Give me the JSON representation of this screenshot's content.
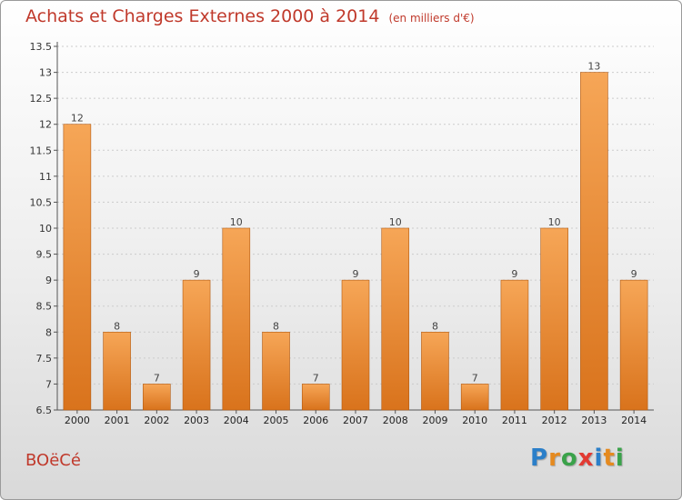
{
  "header": {
    "title": "Achats et Charges Externes 2000 à 2014",
    "unit": "(en milliers d'€)"
  },
  "commune": "BOëCé",
  "logo": {
    "letters": [
      "P",
      "r",
      "o",
      "x",
      "i",
      "t",
      "i"
    ],
    "colors": [
      "#2b7fc9",
      "#e58a1f",
      "#3aa24a",
      "#e23a32",
      "#2b7fc9",
      "#e58a1f",
      "#3aa24a"
    ]
  },
  "colors": {
    "bar_light": "#f6a657",
    "bar_dark": "#d9731c",
    "bar_shadow": "#b25a12",
    "grid": "#cccccc"
  },
  "chart_data": {
    "type": "bar",
    "title": "Achats et Charges Externes 2000 à 2014",
    "categories": [
      "2000",
      "2001",
      "2002",
      "2003",
      "2004",
      "2005",
      "2006",
      "2007",
      "2008",
      "2009",
      "2010",
      "2011",
      "2012",
      "2013",
      "2014"
    ],
    "values": [
      12,
      8,
      7,
      9,
      10,
      8,
      7,
      9,
      10,
      8,
      7,
      9,
      10,
      13,
      9
    ],
    "ylim": [
      6.5,
      13.5
    ],
    "yticks": [
      "6.5",
      "7",
      "7.5",
      "8",
      "8.5",
      "9",
      "9.5",
      "10",
      "10.5",
      "11",
      "11.5",
      "12",
      "12.5",
      "13",
      "13.5"
    ],
    "grid": true,
    "xlabel": "",
    "ylabel": ""
  }
}
